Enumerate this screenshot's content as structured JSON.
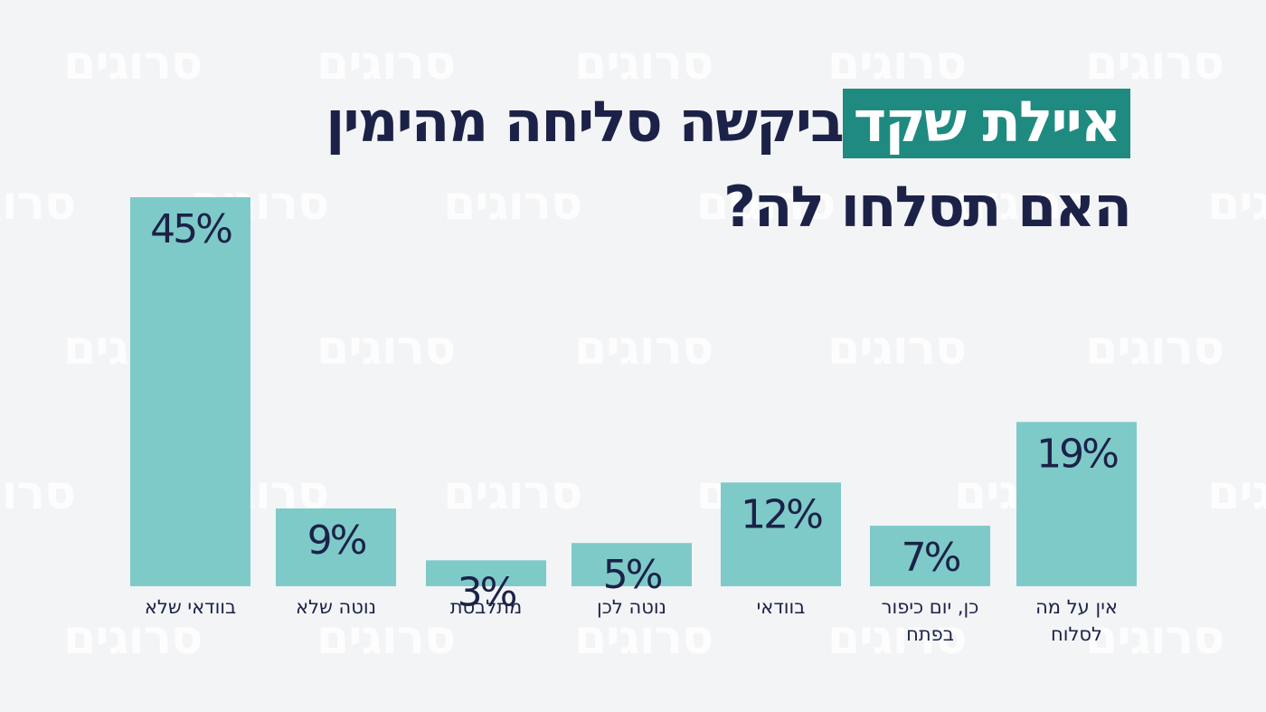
{
  "title": {
    "highlight": "איילת שקד",
    "line1_rest": "ביקשה סליחה מהימין",
    "line2": "האם תסלחו לה?"
  },
  "watermark": "סרוגים",
  "colors": {
    "background": "#f2f4f6",
    "bar": "#7ecac9",
    "text": "#1c2247",
    "highlight": "#1f8a80"
  },
  "chart_data": {
    "type": "bar",
    "categories": [
      [
        "בוודאי שלא"
      ],
      [
        "נוטה שלא"
      ],
      [
        "מתלבטת"
      ],
      [
        "נוטה לכן"
      ],
      [
        "בוודאי"
      ],
      [
        "כן, יום כיפור",
        "בפתח"
      ],
      [
        "אין על מה",
        "לסלוח"
      ]
    ],
    "values": [
      45,
      9,
      3,
      5,
      12,
      7,
      19
    ],
    "value_labels": [
      "45%",
      "9%",
      "3%",
      "5%",
      "12%",
      "7%",
      "19%"
    ],
    "ylim": [
      0,
      45
    ],
    "grid": false,
    "legend": "none"
  }
}
